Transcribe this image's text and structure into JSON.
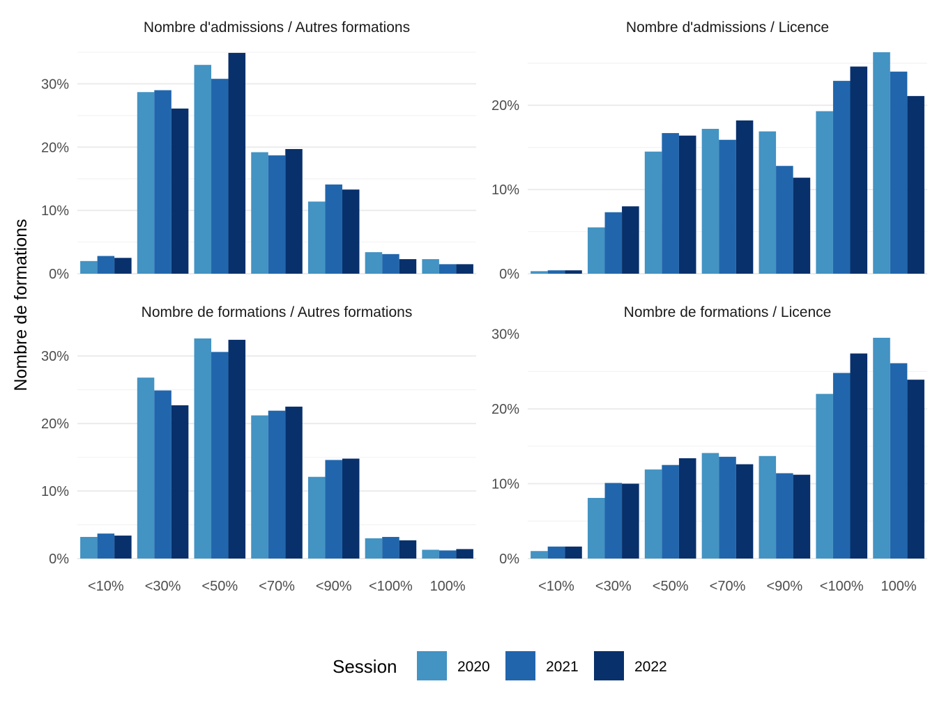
{
  "ylabel": "Nombre de formations",
  "legend": {
    "title": "Session",
    "items": [
      {
        "label": "2020",
        "color": "#4393C3"
      },
      {
        "label": "2021",
        "color": "#2166AC"
      },
      {
        "label": "2022",
        "color": "#08306B"
      }
    ]
  },
  "chart_data": [
    {
      "type": "bar",
      "title": "Nombre d'admissions / Autres formations",
      "categories": [
        "<10%",
        "<30%",
        "<50%",
        "<70%",
        "<90%",
        "<100%",
        "100%"
      ],
      "ylim": [
        0,
        35
      ],
      "yticks": [
        0,
        10,
        20,
        30
      ],
      "ytick_labels": [
        "0%",
        "10%",
        "20%",
        "30%"
      ],
      "series": [
        {
          "name": "2020",
          "values": [
            2.0,
            28.7,
            33.0,
            19.2,
            11.4,
            3.4,
            2.3
          ]
        },
        {
          "name": "2021",
          "values": [
            2.8,
            29.0,
            30.8,
            18.7,
            14.1,
            3.1,
            1.5
          ]
        },
        {
          "name": "2022",
          "values": [
            2.5,
            26.1,
            34.9,
            19.7,
            13.3,
            2.3,
            1.5
          ]
        }
      ]
    },
    {
      "type": "bar",
      "title": "Nombre d'admissions / Licence",
      "categories": [
        "<10%",
        "<30%",
        "<50%",
        "<70%",
        "<90%",
        "<100%",
        "100%"
      ],
      "ylim": [
        0,
        26.3
      ],
      "yticks": [
        0,
        10,
        20
      ],
      "ytick_labels": [
        "0%",
        "10%",
        "20%"
      ],
      "series": [
        {
          "name": "2020",
          "values": [
            0.3,
            5.5,
            14.5,
            17.2,
            16.9,
            19.3,
            26.3
          ]
        },
        {
          "name": "2021",
          "values": [
            0.4,
            7.3,
            16.7,
            15.9,
            12.8,
            22.9,
            24.0
          ]
        },
        {
          "name": "2022",
          "values": [
            0.4,
            8.0,
            16.4,
            18.2,
            11.4,
            24.6,
            21.1
          ]
        }
      ]
    },
    {
      "type": "bar",
      "title": "Nombre de formations / Autres formations",
      "categories": [
        "<10%",
        "<30%",
        "<50%",
        "<70%",
        "<90%",
        "<100%",
        "100%"
      ],
      "ylim": [
        0,
        32.7
      ],
      "yticks": [
        0,
        10,
        20,
        30
      ],
      "ytick_labels": [
        "0%",
        "10%",
        "20%",
        "30%"
      ],
      "series": [
        {
          "name": "2020",
          "values": [
            3.2,
            26.8,
            32.6,
            21.2,
            12.1,
            3.0,
            1.3
          ]
        },
        {
          "name": "2021",
          "values": [
            3.7,
            24.9,
            30.6,
            21.9,
            14.6,
            3.2,
            1.2
          ]
        },
        {
          "name": "2022",
          "values": [
            3.4,
            22.7,
            32.4,
            22.5,
            14.8,
            2.7,
            1.4
          ]
        }
      ]
    },
    {
      "type": "bar",
      "title": "Nombre de formations / Licence",
      "categories": [
        "<10%",
        "<30%",
        "<50%",
        "<70%",
        "<90%",
        "<100%",
        "100%"
      ],
      "ylim": [
        0,
        29.5
      ],
      "yticks": [
        0,
        10,
        20,
        30
      ],
      "ytick_labels": [
        "0%",
        "10%",
        "20%",
        "30%"
      ],
      "series": [
        {
          "name": "2020",
          "values": [
            1.0,
            8.1,
            11.9,
            14.1,
            13.7,
            22.0,
            29.5
          ]
        },
        {
          "name": "2021",
          "values": [
            1.6,
            10.1,
            12.5,
            13.6,
            11.4,
            24.8,
            26.1
          ]
        },
        {
          "name": "2022",
          "values": [
            1.6,
            10.0,
            13.4,
            12.6,
            11.2,
            27.4,
            23.9
          ]
        }
      ]
    }
  ]
}
